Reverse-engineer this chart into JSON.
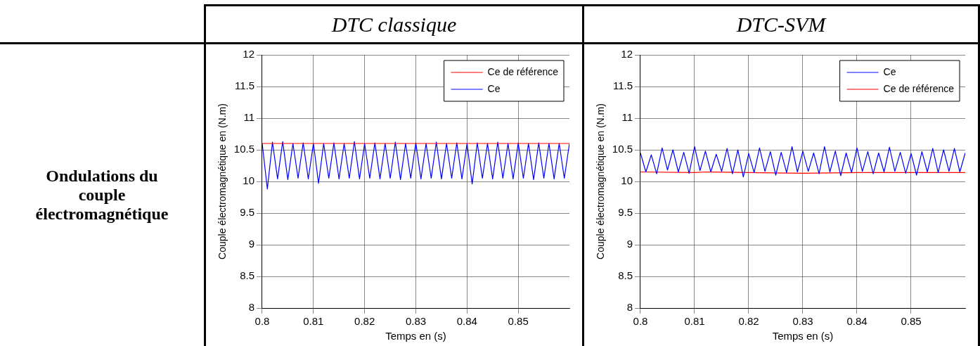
{
  "chart_data": [
    {
      "type": "line",
      "title": "DTC classique",
      "xlabel": "Temps en (s)",
      "ylabel": "Couple électromagnétique en (N.m)",
      "annotations": [
        "Ondulations du couple électromagnétique"
      ],
      "xlim": [
        0.8,
        0.86
      ],
      "xticks": [
        0.8,
        0.81,
        0.82,
        0.83,
        0.84,
        0.85
      ],
      "ylim": [
        8,
        12
      ],
      "yticks": [
        8,
        8.5,
        9,
        9.5,
        10,
        10.5,
        11,
        11.5,
        12
      ],
      "grid": true,
      "legend": "top right",
      "line_style": "solid",
      "marker": "none",
      "series": [
        {
          "name": "Ce de référence",
          "color": "#ff0000",
          "x": [
            0.8,
            0.86
          ],
          "values": [
            10.6,
            10.6
          ]
        },
        {
          "name": "Ce",
          "color": "#0000ff",
          "x": [
            0.8,
            0.801,
            0.802,
            0.803,
            0.804,
            0.805,
            0.806,
            0.807,
            0.808,
            0.809,
            0.81,
            0.811,
            0.812,
            0.813,
            0.814,
            0.815,
            0.816,
            0.817,
            0.818,
            0.819,
            0.82,
            0.821,
            0.822,
            0.823,
            0.824,
            0.825,
            0.826,
            0.827,
            0.828,
            0.829,
            0.83,
            0.831,
            0.832,
            0.833,
            0.834,
            0.835,
            0.836,
            0.837,
            0.838,
            0.839,
            0.84,
            0.841,
            0.842,
            0.843,
            0.844,
            0.845,
            0.846,
            0.847,
            0.848,
            0.849,
            0.85,
            0.851,
            0.852,
            0.853,
            0.854,
            0.855,
            0.856,
            0.857,
            0.858,
            0.859,
            0.86
          ],
          "values": [
            10.6,
            9.88,
            10.62,
            10.04,
            10.63,
            10.03,
            10.6,
            10.05,
            10.61,
            10.04,
            10.6,
            9.97,
            10.6,
            10.05,
            10.61,
            10.04,
            10.6,
            10.05,
            10.63,
            10.04,
            10.6,
            10.05,
            10.61,
            10.04,
            10.6,
            10.05,
            10.62,
            10.03,
            10.6,
            10.05,
            10.61,
            10.04,
            10.6,
            10.05,
            10.62,
            10.04,
            10.6,
            10.05,
            10.61,
            10.04,
            10.6,
            9.96,
            10.61,
            10.05,
            10.6,
            10.04,
            10.62,
            10.05,
            10.6,
            10.04,
            10.61,
            10.05,
            10.6,
            10.03,
            10.61,
            10.05,
            10.6,
            10.04,
            10.6,
            10.05,
            10.6
          ]
        }
      ]
    },
    {
      "type": "line",
      "title": "DTC-SVM",
      "xlabel": "Temps en (s)",
      "ylabel": "Couple électromagnétique en (N.m)",
      "xlim": [
        0.8,
        0.86
      ],
      "xticks": [
        0.8,
        0.81,
        0.82,
        0.83,
        0.84,
        0.85
      ],
      "ylim": [
        8,
        12
      ],
      "yticks": [
        8,
        8.5,
        9,
        9.5,
        10,
        10.5,
        11,
        11.5,
        12
      ],
      "grid": true,
      "legend": "top right",
      "line_style": "solid",
      "marker": "none",
      "series": [
        {
          "name": "Ce",
          "color": "#0000ff",
          "x": [
            0.8,
            0.801,
            0.802,
            0.803,
            0.804,
            0.805,
            0.806,
            0.807,
            0.808,
            0.809,
            0.81,
            0.811,
            0.812,
            0.813,
            0.814,
            0.815,
            0.816,
            0.817,
            0.818,
            0.819,
            0.82,
            0.821,
            0.822,
            0.823,
            0.824,
            0.825,
            0.826,
            0.827,
            0.828,
            0.829,
            0.83,
            0.831,
            0.832,
            0.833,
            0.834,
            0.835,
            0.836,
            0.837,
            0.838,
            0.839,
            0.84,
            0.841,
            0.842,
            0.843,
            0.844,
            0.845,
            0.846,
            0.847,
            0.848,
            0.849,
            0.85,
            0.851,
            0.852,
            0.853,
            0.854,
            0.855,
            0.856,
            0.857,
            0.858,
            0.859,
            0.86
          ],
          "values": [
            10.45,
            10.15,
            10.42,
            10.12,
            10.53,
            10.18,
            10.5,
            10.15,
            10.46,
            10.13,
            10.55,
            10.17,
            10.48,
            10.15,
            10.43,
            10.16,
            10.52,
            10.12,
            10.5,
            10.07,
            10.44,
            10.14,
            10.53,
            10.16,
            10.47,
            10.1,
            10.46,
            10.14,
            10.55,
            10.15,
            10.48,
            10.16,
            10.45,
            10.12,
            10.55,
            10.15,
            10.48,
            10.09,
            10.45,
            10.14,
            10.53,
            10.16,
            10.47,
            10.12,
            10.45,
            10.15,
            10.54,
            10.16,
            10.46,
            10.13,
            10.44,
            10.1,
            10.47,
            10.15,
            10.52,
            10.14,
            10.5,
            10.16,
            10.52,
            10.15,
            10.45
          ]
        },
        {
          "name": "Ce de référence",
          "color": "#ff0000",
          "x": [
            0.8,
            0.81,
            0.812,
            0.82,
            0.83,
            0.84,
            0.86
          ],
          "values": [
            10.15,
            10.14,
            10.15,
            10.14,
            10.13,
            10.14,
            10.14
          ]
        }
      ]
    }
  ]
}
